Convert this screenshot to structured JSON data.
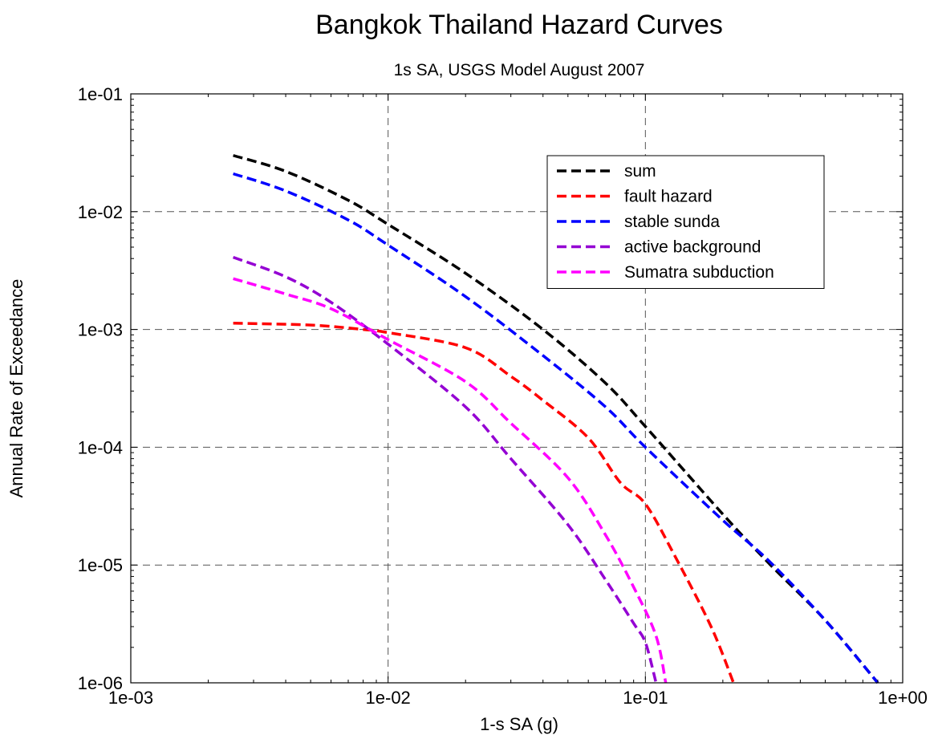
{
  "chart_data": {
    "type": "line",
    "title": "Bangkok Thailand Hazard Curves",
    "subtitle": "1s SA, USGS Model August 2007",
    "xlabel": "1-s SA (g)",
    "ylabel": "Annual Rate of Exceedance",
    "xscale": "log",
    "yscale": "log",
    "xlim": [
      0.001,
      1
    ],
    "ylim": [
      1e-06,
      0.1
    ],
    "x_ticks": [
      "1e-03",
      "1e-02",
      "1e-01",
      "1e+00"
    ],
    "y_ticks": [
      "1e-06",
      "1e-05",
      "1e-04",
      "1e-03",
      "1e-02",
      "1e-01"
    ],
    "grid": true,
    "legend_position": "top-right",
    "series": [
      {
        "name": "sum",
        "color": "#000000",
        "points": [
          [
            0.0025,
            0.03
          ],
          [
            0.004,
            0.022
          ],
          [
            0.007,
            0.0125
          ],
          [
            0.01,
            0.0078
          ],
          [
            0.02,
            0.003
          ],
          [
            0.04,
            0.001
          ],
          [
            0.07,
            0.00035
          ],
          [
            0.1,
            0.00015
          ],
          [
            0.2,
            2.7e-05
          ],
          [
            0.3,
            1.05e-05
          ],
          [
            0.5,
            3.4e-06
          ],
          [
            0.8,
            1e-06
          ]
        ]
      },
      {
        "name": "fault hazard",
        "color": "#ff0000",
        "points": [
          [
            0.0025,
            0.00113
          ],
          [
            0.005,
            0.00109
          ],
          [
            0.008,
            0.001
          ],
          [
            0.01,
            0.00094
          ],
          [
            0.02,
            0.0007
          ],
          [
            0.03,
            0.0004
          ],
          [
            0.04,
            0.00025
          ],
          [
            0.06,
            0.00012
          ],
          [
            0.08,
            5e-05
          ],
          [
            0.1,
            3.3e-05
          ],
          [
            0.13,
            1.2e-05
          ],
          [
            0.18,
            3e-06
          ],
          [
            0.22,
            1e-06
          ]
        ]
      },
      {
        "name": "stable sunda",
        "color": "#0000ff",
        "points": [
          [
            0.0025,
            0.021
          ],
          [
            0.004,
            0.015
          ],
          [
            0.007,
            0.0085
          ],
          [
            0.01,
            0.0052
          ],
          [
            0.02,
            0.0019
          ],
          [
            0.04,
            0.0006
          ],
          [
            0.07,
            0.00022
          ],
          [
            0.1,
            0.0001
          ],
          [
            0.2,
            2.4e-05
          ],
          [
            0.3,
            1.1e-05
          ],
          [
            0.5,
            3.4e-06
          ],
          [
            0.8,
            1e-06
          ]
        ]
      },
      {
        "name": "active background",
        "color": "#9400d3",
        "points": [
          [
            0.0025,
            0.0041
          ],
          [
            0.004,
            0.0028
          ],
          [
            0.006,
            0.0017
          ],
          [
            0.01,
            0.00075
          ],
          [
            0.02,
            0.00022
          ],
          [
            0.03,
            8e-05
          ],
          [
            0.05,
            2.2e-05
          ],
          [
            0.07,
            7.5e-06
          ],
          [
            0.09,
            3.2e-06
          ],
          [
            0.1,
            2.2e-06
          ],
          [
            0.11,
            1e-06
          ]
        ]
      },
      {
        "name": "Sumatra subduction",
        "color": "#ff00ff",
        "points": [
          [
            0.0025,
            0.0027
          ],
          [
            0.004,
            0.002
          ],
          [
            0.006,
            0.0015
          ],
          [
            0.01,
            0.00082
          ],
          [
            0.02,
            0.00036
          ],
          [
            0.03,
            0.00016
          ],
          [
            0.05,
            5.5e-05
          ],
          [
            0.07,
            1.8e-05
          ],
          [
            0.09,
            6.5e-06
          ],
          [
            0.11,
            2.5e-06
          ],
          [
            0.12,
            1e-06
          ]
        ]
      }
    ]
  }
}
